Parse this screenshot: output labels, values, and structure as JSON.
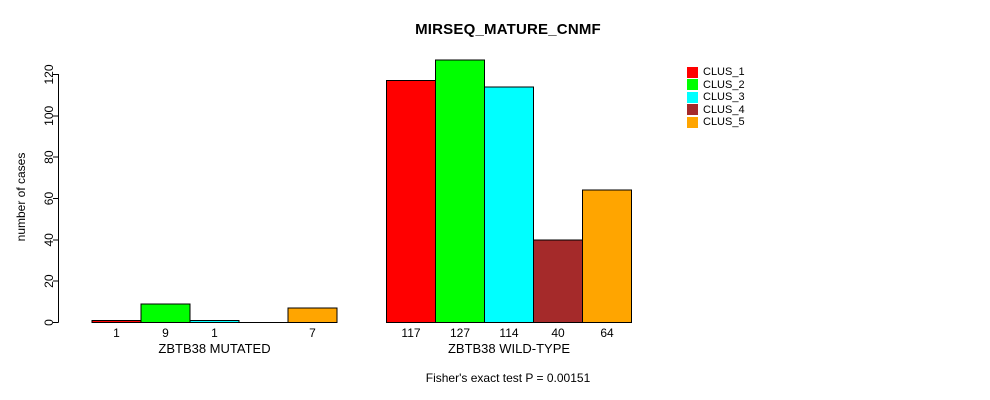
{
  "chart_data": {
    "type": "bar",
    "title": "MIRSEQ_MATURE_CNMF",
    "ylabel": "number of cases",
    "xlabel": "",
    "ylim": [
      0,
      120
    ],
    "yticks": [
      0,
      20,
      40,
      60,
      80,
      100,
      120
    ],
    "grid": false,
    "legend_position": "top-right",
    "categories": [
      "ZBTB38 MUTATED",
      "ZBTB38 WILD-TYPE"
    ],
    "series": [
      {
        "name": "CLUS_1",
        "color": "#ff0000",
        "values": [
          1,
          117
        ]
      },
      {
        "name": "CLUS_2",
        "color": "#00ff00",
        "values": [
          9,
          127
        ]
      },
      {
        "name": "CLUS_3",
        "color": "#00ffff",
        "values": [
          1,
          114
        ]
      },
      {
        "name": "CLUS_4",
        "color": "#a52a2a",
        "values": [
          0,
          40
        ]
      },
      {
        "name": "CLUS_5",
        "color": "#ffa500",
        "values": [
          7,
          64
        ]
      }
    ],
    "value_labels_shown": true,
    "zero_value_labels_hidden": true,
    "annotation": "Fisher's exact test P = 0.00151"
  }
}
